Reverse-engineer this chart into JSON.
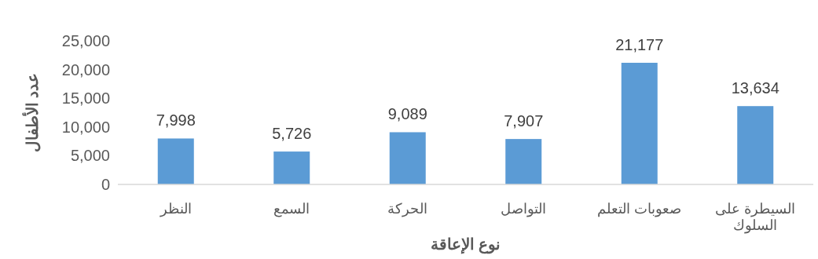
{
  "chart_data": {
    "type": "bar",
    "xlabel": "نوع الإعاقة",
    "ylabel": "عدد الأطفال",
    "categories": [
      "النظر",
      "السمع",
      "الحركة",
      "التواصل",
      "صعوبات التعلم",
      "السيطرة على السلوك"
    ],
    "values": [
      7998,
      5726,
      9089,
      7907,
      21177,
      13634
    ],
    "value_labels": [
      "7,998",
      "5,726",
      "9,089",
      "7,907",
      "21,177",
      "13,634"
    ],
    "color": "#5b9bd5",
    "ylim": [
      0,
      25000
    ],
    "yticks": [
      0,
      {
        "value": 5000,
        "label": "5,000"
      },
      {
        "value": 10000,
        "label": "10,000"
      },
      {
        "value": 15000,
        "label": "15,000"
      },
      {
        "value": 20000,
        "label": "20,000"
      },
      {
        "value": 25000,
        "label": "25,000"
      }
    ],
    "grid": false
  }
}
